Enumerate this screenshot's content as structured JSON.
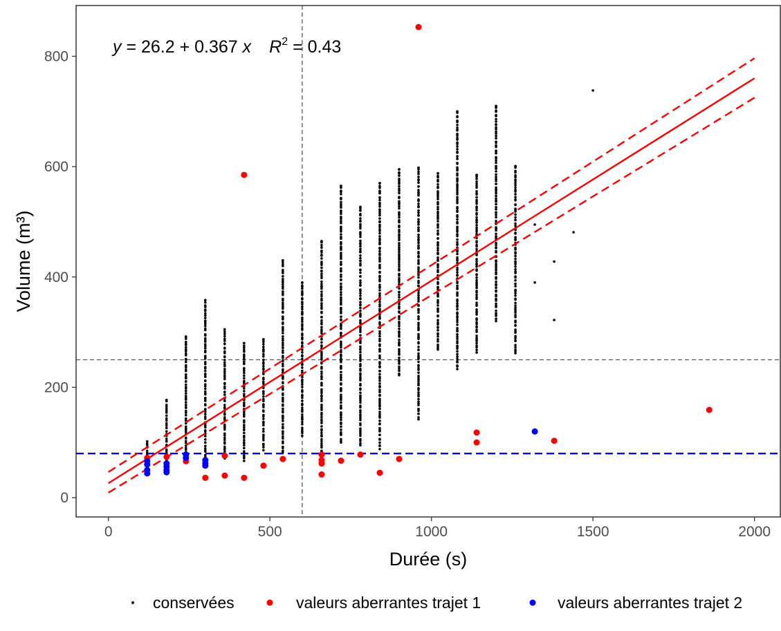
{
  "chart_data": {
    "type": "scatter",
    "xlabel": "Durée (s)",
    "ylabel": "Volume (m³)",
    "xlim": [
      -100,
      2080
    ],
    "ylim": [
      -35,
      892
    ],
    "x_ticks": [
      0,
      500,
      1000,
      1500,
      2000
    ],
    "y_ticks": [
      0,
      200,
      400,
      600,
      800
    ],
    "grid": false,
    "legend_position": "bottom",
    "annotation": {
      "equation_y": "y",
      "equation_middle": " = 26.2 + 0.367 ",
      "equation_x": "x",
      "r2_base": "R",
      "r2_exp": "2",
      "r2_value": " = 0.43"
    },
    "regression": {
      "intercept": 26.2,
      "slope": 0.367,
      "x_range": [
        0,
        2000
      ],
      "color": "#ff0000"
    },
    "confidence_band": {
      "upper": {
        "intercept": 46.5,
        "slope": 0.375
      },
      "lower": {
        "intercept": 9.0,
        "slope": 0.358
      },
      "x_range": [
        0,
        2000
      ],
      "color": "#ff0000"
    },
    "reference_lines": [
      {
        "orientation": "vertical",
        "value": 600,
        "color": "#555555",
        "style": "dashed"
      },
      {
        "orientation": "horizontal",
        "value": 250,
        "color": "#555555",
        "style": "dashed"
      },
      {
        "orientation": "horizontal",
        "value": 80,
        "color": "#0000ff",
        "style": "dashed"
      }
    ],
    "series": [
      {
        "name": "conservées",
        "color": "#000000",
        "columns": [
          {
            "x": 120,
            "min": 58,
            "max": 102
          },
          {
            "x": 180,
            "min": 60,
            "max": 177
          },
          {
            "x": 240,
            "min": 70,
            "max": 292
          },
          {
            "x": 300,
            "min": 66,
            "max": 358
          },
          {
            "x": 360,
            "min": 70,
            "max": 305
          },
          {
            "x": 420,
            "min": 66,
            "max": 280
          },
          {
            "x": 480,
            "min": 86,
            "max": 287
          },
          {
            "x": 540,
            "min": 82,
            "max": 430
          },
          {
            "x": 600,
            "min": 112,
            "max": 390
          },
          {
            "x": 660,
            "min": 82,
            "max": 465
          },
          {
            "x": 720,
            "min": 100,
            "max": 565
          },
          {
            "x": 780,
            "min": 95,
            "max": 527
          },
          {
            "x": 840,
            "min": 88,
            "max": 570
          },
          {
            "x": 900,
            "min": 222,
            "max": 595
          },
          {
            "x": 960,
            "min": 142,
            "max": 598
          },
          {
            "x": 1020,
            "min": 267,
            "max": 588
          },
          {
            "x": 1080,
            "min": 233,
            "max": 700
          },
          {
            "x": 1140,
            "min": 263,
            "max": 585
          },
          {
            "x": 1200,
            "min": 320,
            "max": 710
          },
          {
            "x": 1260,
            "min": 262,
            "max": 601
          }
        ],
        "points": [
          [
            1320,
            390
          ],
          [
            1320,
            495
          ],
          [
            1380,
            322
          ],
          [
            1380,
            428
          ],
          [
            1440,
            481
          ],
          [
            1500,
            738
          ]
        ]
      },
      {
        "name": "valeurs aberrantes trajet 1",
        "color": "#ff0000",
        "points": [
          [
            120,
            72
          ],
          [
            180,
            74
          ],
          [
            240,
            66
          ],
          [
            300,
            36
          ],
          [
            360,
            40
          ],
          [
            360,
            76
          ],
          [
            420,
            36
          ],
          [
            420,
            585
          ],
          [
            480,
            58
          ],
          [
            540,
            70
          ],
          [
            660,
            42
          ],
          [
            660,
            62
          ],
          [
            660,
            68
          ],
          [
            660,
            78
          ],
          [
            720,
            67
          ],
          [
            780,
            78
          ],
          [
            840,
            45
          ],
          [
            900,
            70
          ],
          [
            960,
            853
          ],
          [
            1140,
            100
          ],
          [
            1140,
            118
          ],
          [
            1380,
            103
          ],
          [
            1860,
            159
          ]
        ]
      },
      {
        "name": "valeurs aberrantes trajet 2",
        "color": "#0000ff",
        "points": [
          [
            120,
            44
          ],
          [
            120,
            50
          ],
          [
            120,
            60
          ],
          [
            120,
            66
          ],
          [
            180,
            46
          ],
          [
            180,
            50
          ],
          [
            180,
            56
          ],
          [
            180,
            62
          ],
          [
            240,
            72
          ],
          [
            240,
            78
          ],
          [
            300,
            58
          ],
          [
            300,
            62
          ],
          [
            300,
            68
          ],
          [
            1320,
            120
          ]
        ]
      }
    ]
  }
}
